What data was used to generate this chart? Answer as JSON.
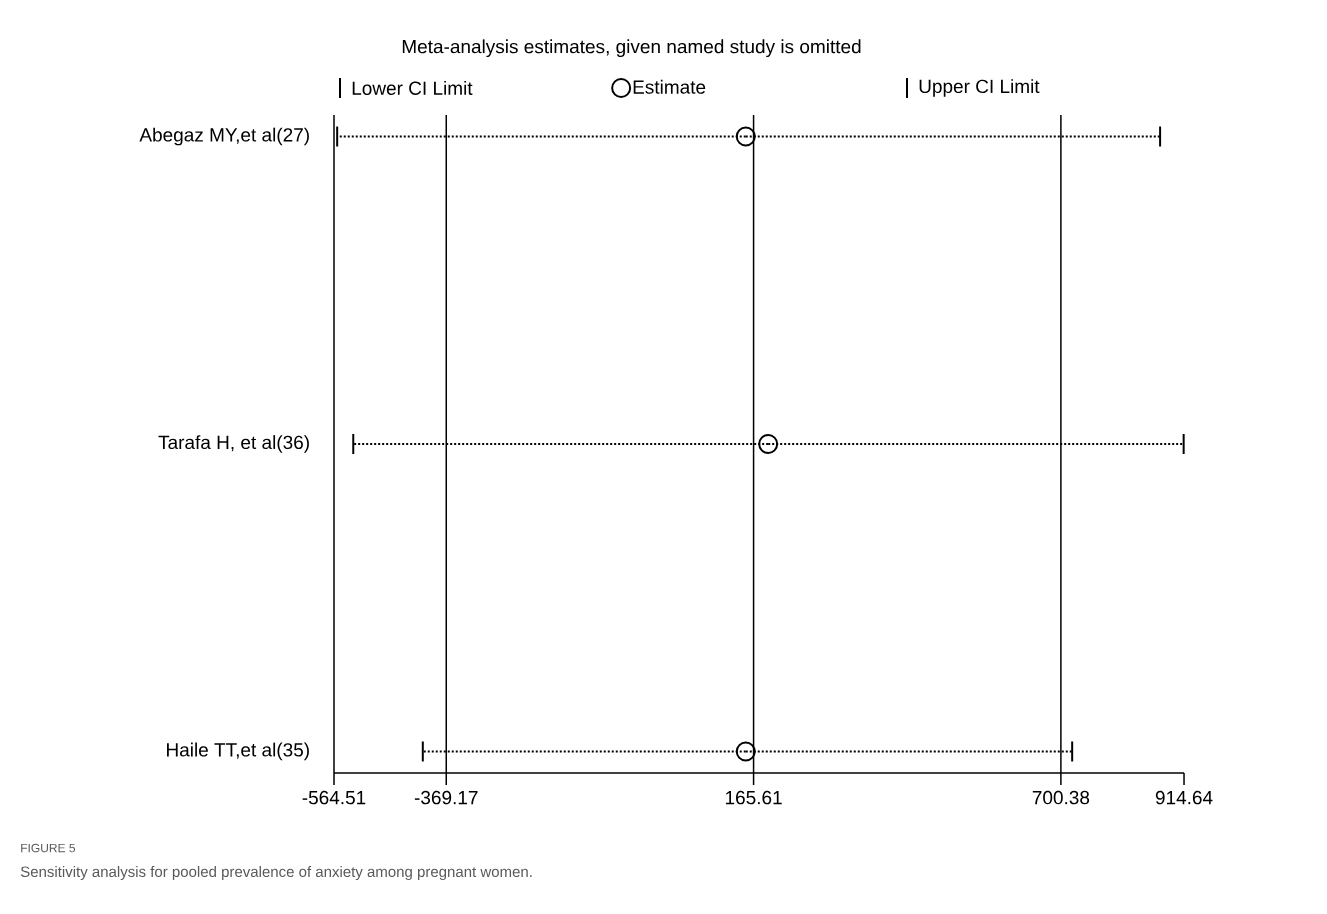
{
  "chart_data": {
    "type": "scatter",
    "title": "Meta-analysis estimates, given named study is omitted",
    "categories": [
      "Abegaz MY,et al(27)",
      "Tarafa H, et al(36)",
      "Haile TT,et al(35)"
    ],
    "orientation": "horizontal",
    "series": [
      {
        "name": "Estimate",
        "color": "#000000",
        "marker": "circle",
        "values": [
          152,
          191,
          152
        ],
        "errors": [
          [
            -559,
            873
          ],
          [
            -531,
            914
          ],
          [
            -410,
            720
          ]
        ]
      }
    ],
    "xlim": [
      -564.51,
      914.64
    ],
    "xticks": [
      -564.51,
      -369.17,
      165.61,
      700.38,
      914.64
    ],
    "ref_lines": [
      {
        "axis": "x",
        "value": -369.17,
        "color": "#000000",
        "line_style": "solid"
      },
      {
        "axis": "x",
        "value": 165.61,
        "color": "#000000",
        "line_style": "solid"
      },
      {
        "axis": "x",
        "value": 700.38,
        "color": "#000000",
        "line_style": "solid"
      }
    ],
    "line_style": "dotted",
    "legend": "top",
    "annotations": [
      "Lower CI Limit",
      "Upper CI Limit",
      "FIGURE 5",
      "Sensitivity analysis for pooled prevalence of anxiety among pregnant women."
    ]
  }
}
